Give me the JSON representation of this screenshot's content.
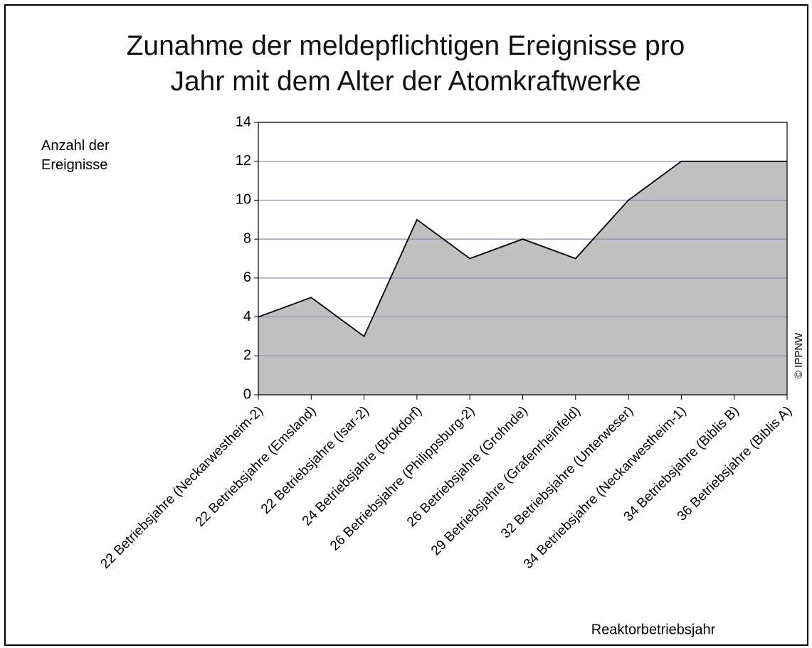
{
  "chart_data": {
    "type": "area",
    "title": "Zunahme der meldepflichtigen Ereignisse pro\nJahr mit dem Alter der Atomkraftwerke",
    "y_label": "Anzahl der Ereignisse",
    "x_label": "Reaktorbetriebsjahr",
    "credit": "© IPPNW",
    "categories": [
      "22 Betriebsjahre (Neckarwestheim-2)",
      "22 Betriebsjahre (Emsland)",
      "22 Betriebsjahre (Isar-2)",
      "24 Betriebsjahre (Brokdorf)",
      "26 Betriebsjahre (Philippsburg-2)",
      "26 Betriebsjahre (Grohnde)",
      "29 Betriebsjahre (Grafenrheinfeld)",
      "32 Betriebsjahre (Unterweser)",
      "34 Betriebsjahre (Neckarwestheim-1)",
      "34 Betriebsjahre (Biblis B)",
      "36 Betriebsjahre (Biblis A)"
    ],
    "values": [
      4,
      5,
      3,
      9,
      7,
      8,
      7,
      10,
      12,
      12,
      12
    ],
    "color": "#c0c0c0",
    "ylim": [
      0,
      14
    ],
    "yticks": [
      0,
      2,
      4,
      6,
      8,
      10,
      12,
      14
    ],
    "grid": true
  }
}
